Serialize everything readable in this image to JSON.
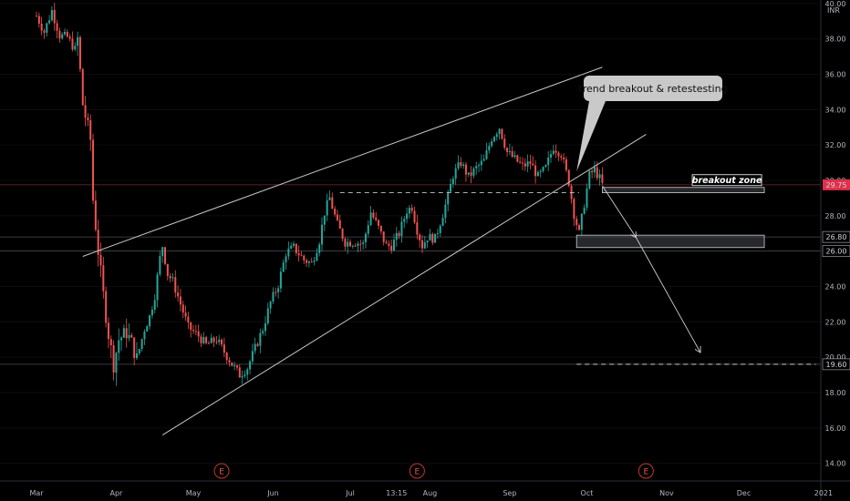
{
  "chart_data": {
    "type": "candlestick",
    "currency": "INR",
    "ylim": [
      13.0,
      40.2
    ],
    "xlim_days": [
      0,
      300
    ],
    "x_ticks": [
      {
        "label": "Mar",
        "day": 0
      },
      {
        "label": "Apr",
        "day": 31
      },
      {
        "label": "May",
        "day": 61
      },
      {
        "label": "Jun",
        "day": 92
      },
      {
        "label": "Jul",
        "day": 122
      },
      {
        "label": "13:15",
        "day": 140
      },
      {
        "label": "Aug",
        "day": 153
      },
      {
        "label": "Sep",
        "day": 184
      },
      {
        "label": "Oct",
        "day": 214
      },
      {
        "label": "Nov",
        "day": 245
      },
      {
        "label": "Dec",
        "day": 275
      },
      {
        "label": "2021",
        "day": 306
      }
    ],
    "y_ticks": [
      14,
      16,
      18,
      20,
      22,
      24,
      26,
      28,
      30,
      32,
      34,
      36,
      38,
      40
    ],
    "price_path": [
      [
        0,
        39.3
      ],
      [
        3,
        38.4
      ],
      [
        6,
        39.6
      ],
      [
        9,
        38.2
      ],
      [
        12,
        38.1
      ],
      [
        15,
        37.4
      ],
      [
        16,
        38.0
      ],
      [
        18,
        34.3
      ],
      [
        21,
        32.3
      ],
      [
        22,
        28.9
      ],
      [
        24,
        26.0
      ],
      [
        26,
        23.5
      ],
      [
        28,
        21.3
      ],
      [
        30,
        19.6
      ],
      [
        32,
        21.0
      ],
      [
        35,
        21.4
      ],
      [
        37,
        20.8
      ],
      [
        39,
        19.9
      ],
      [
        42,
        21.6
      ],
      [
        44,
        22.3
      ],
      [
        46,
        23.5
      ],
      [
        48,
        25.6
      ],
      [
        49,
        26.3
      ],
      [
        51,
        24.7
      ],
      [
        53,
        24.3
      ],
      [
        56,
        23.0
      ],
      [
        59,
        21.7
      ],
      [
        63,
        21.2
      ],
      [
        66,
        20.7
      ],
      [
        70,
        21.0
      ],
      [
        73,
        20.3
      ],
      [
        76,
        19.6
      ],
      [
        79,
        19.0
      ],
      [
        82,
        19.4
      ],
      [
        85,
        20.5
      ],
      [
        88,
        21.6
      ],
      [
        91,
        23.1
      ],
      [
        94,
        24.1
      ],
      [
        97,
        25.9
      ],
      [
        100,
        26.2
      ],
      [
        104,
        25.5
      ],
      [
        107,
        25.3
      ],
      [
        110,
        26.6
      ],
      [
        112,
        28.2
      ],
      [
        114,
        29.0
      ],
      [
        117,
        27.5
      ],
      [
        120,
        26.5
      ],
      [
        124,
        26.5
      ],
      [
        127,
        26.4
      ],
      [
        130,
        28.2
      ],
      [
        133,
        27.3
      ],
      [
        136,
        26.3
      ],
      [
        138,
        26.3
      ],
      [
        141,
        27.0
      ],
      [
        144,
        28.3
      ],
      [
        146,
        28.5
      ],
      [
        148,
        27.2
      ],
      [
        150,
        26.3
      ],
      [
        152,
        26.8
      ],
      [
        155,
        26.7
      ],
      [
        158,
        28.1
      ],
      [
        160,
        29.1
      ],
      [
        162,
        30.3
      ],
      [
        165,
        31.0
      ],
      [
        168,
        30.2
      ],
      [
        171,
        30.7
      ],
      [
        174,
        31.1
      ],
      [
        177,
        32.4
      ],
      [
        180,
        33.0
      ],
      [
        183,
        31.6
      ],
      [
        186,
        31.2
      ],
      [
        189,
        30.8
      ],
      [
        192,
        31.0
      ],
      [
        195,
        30.2
      ],
      [
        198,
        30.7
      ],
      [
        201,
        31.9
      ],
      [
        204,
        31.5
      ],
      [
        207,
        29.9
      ],
      [
        209,
        28.1
      ],
      [
        211,
        27.0
      ],
      [
        213,
        28.7
      ],
      [
        215,
        30.3
      ],
      [
        217,
        30.6
      ],
      [
        219,
        30.1
      ],
      [
        220,
        29.75
      ]
    ],
    "last_price": 29.75,
    "lines": {
      "rising_wedge_upper": [
        [
          18,
          25.7
        ],
        [
          220,
          36.4
        ]
      ],
      "rising_wedge_lower": [
        [
          49,
          15.6
        ],
        [
          237,
          32.6
        ]
      ],
      "breakout_level": [
        [
          118,
          29.3
        ],
        [
          211,
          29.3
        ]
      ],
      "target_level": [
        [
          210,
          19.6
        ],
        [
          303,
          19.6
        ]
      ]
    },
    "zones": [
      {
        "label": "breakout zone",
        "x1": 220,
        "x2": 283,
        "y_top": 29.6,
        "y_bottom": 29.3
      },
      {
        "x1": 210,
        "x2": 283,
        "y_top": 26.9,
        "y_bottom": 26.2
      }
    ],
    "price_levels": [
      {
        "value": 26.8,
        "label": "26.80"
      },
      {
        "value": 26.0,
        "label": "26.00"
      },
      {
        "value": 19.6,
        "label": "19.60"
      }
    ],
    "projection_arrows": [
      [
        [
          220,
          29.7
        ],
        [
          233,
          26.8
        ]
      ],
      [
        [
          233,
          26.8
        ],
        [
          258,
          20.3
        ]
      ]
    ],
    "earnings_markers": [
      {
        "label": "E",
        "day": 72
      },
      {
        "label": "E",
        "day": 148
      },
      {
        "label": "E",
        "day": 237
      }
    ],
    "callout": {
      "text": "trend breakout & retestesting",
      "pointer_day": 210,
      "pointer_price": 30.5
    }
  }
}
